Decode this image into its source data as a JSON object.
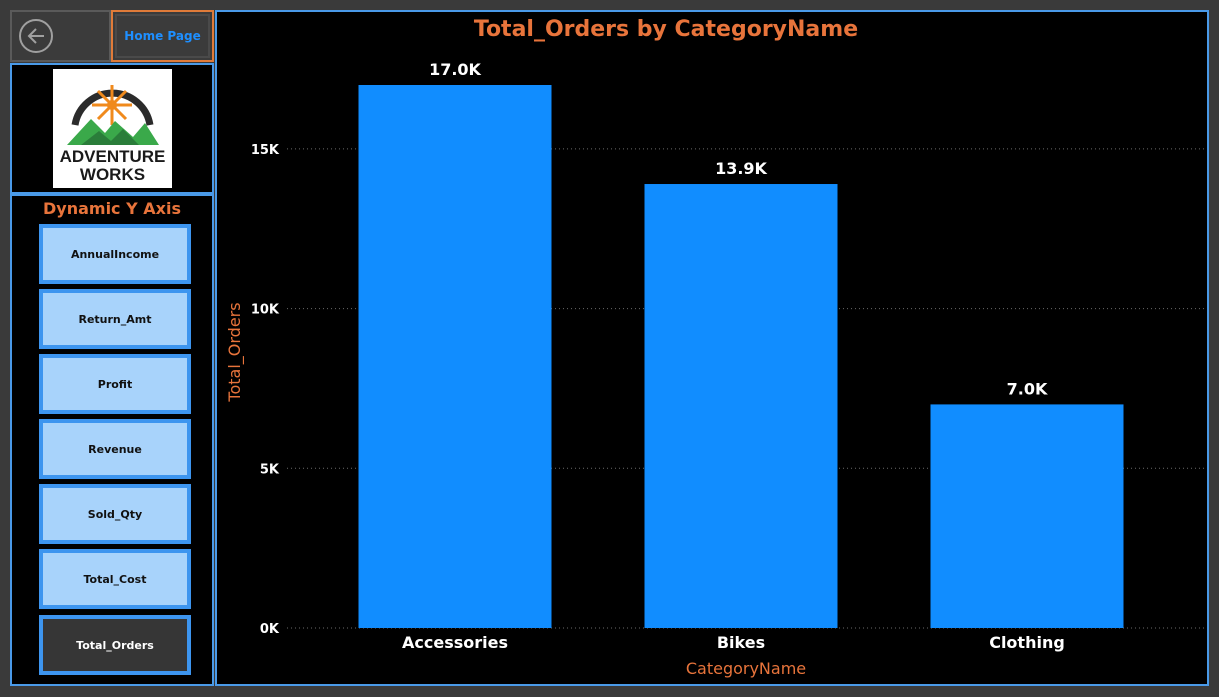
{
  "nav": {
    "home_label": "Home Page"
  },
  "logo": {
    "line1": "ADVENTURE",
    "line2": "WORKS"
  },
  "slicer": {
    "title": "Dynamic Y Axis",
    "items": [
      {
        "label": "AnnualIncome",
        "selected": false
      },
      {
        "label": "Return_Amt",
        "selected": false
      },
      {
        "label": "Profit",
        "selected": false
      },
      {
        "label": "Revenue",
        "selected": false
      },
      {
        "label": "Sold_Qty",
        "selected": false
      },
      {
        "label": "Total_Cost",
        "selected": false
      },
      {
        "label": "Total_Orders",
        "selected": true
      }
    ]
  },
  "colors": {
    "bar": "#118dff",
    "accent": "#e8743b",
    "border": "#4a9ae8"
  },
  "chart_data": {
    "type": "bar",
    "title": "Total_Orders by CategoryName",
    "xlabel": "CategoryName",
    "ylabel": "Total_Orders",
    "categories": [
      "Accessories",
      "Bikes",
      "Clothing"
    ],
    "values": [
      17000,
      13900,
      7000
    ],
    "data_labels": [
      "17.0K",
      "13.9K",
      "7.0K"
    ],
    "yticks": [
      0,
      5000,
      10000,
      15000
    ],
    "ytick_labels": [
      "0K",
      "5K",
      "10K",
      "15K"
    ],
    "ylim": [
      0,
      17000
    ],
    "grid": true
  }
}
